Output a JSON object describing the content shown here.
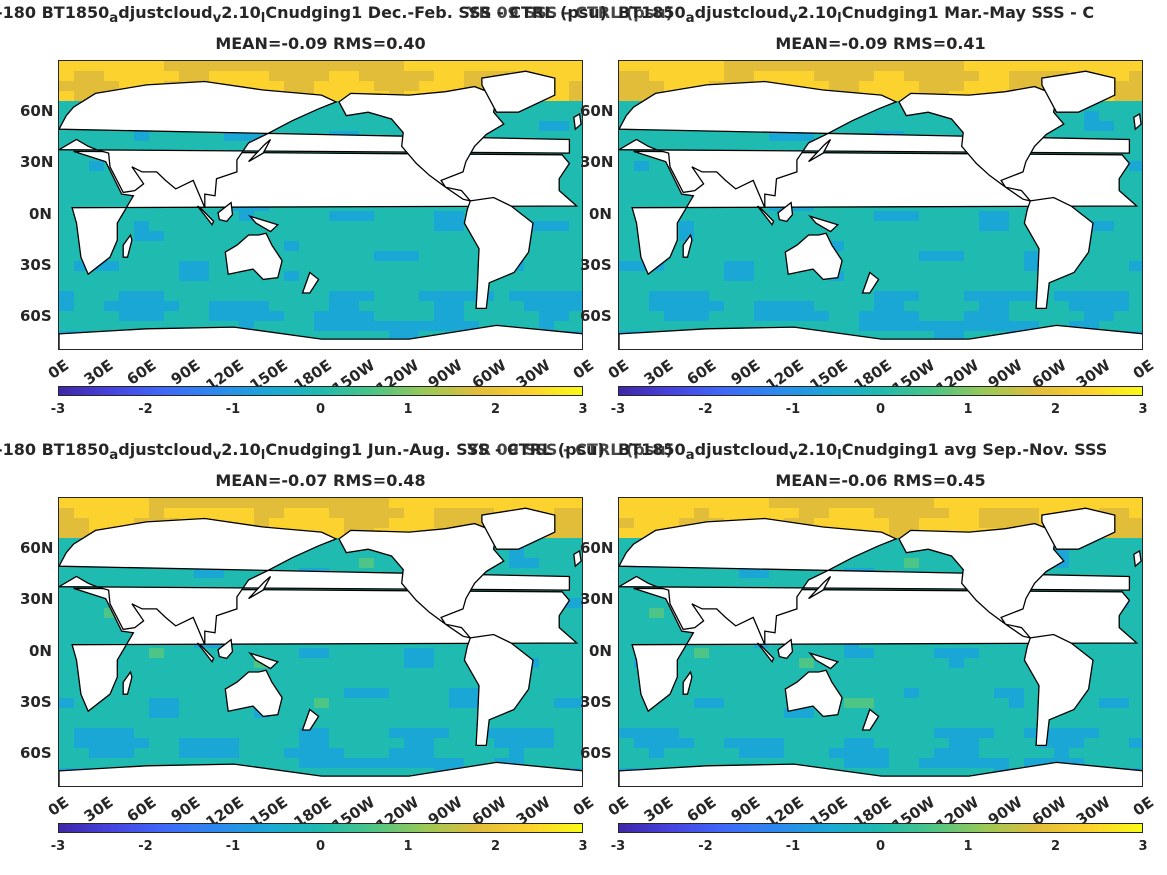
{
  "colors": {
    "colormap": [
      "#3e26a8",
      "#4743e0",
      "#3f68fa",
      "#2d88f0",
      "#1ba7d6",
      "#1fbab0",
      "#4cc586",
      "#9bc957",
      "#e1bd3a",
      "#fcd22e",
      "#f9fb15"
    ],
    "land": "#ffffff",
    "coast": "#000000",
    "ocean": "#2aa8c4"
  },
  "chart_data": [
    {
      "type": "heatmap",
      "title_prefix": "-180 BT1850",
      "title_sub_a": "a",
      "title_mid1": "djustcloud",
      "title_sub_v": "v",
      "title_mid2": "2.10",
      "title_sub_l": "l",
      "title_suffix": "Cnudging1  Dec.-Feb. SSS - CTRL (psu)",
      "overlap_text": "YR 09 SSS - CTRL (psu)",
      "stats": "MEAN=-0.09   RMS=0.40",
      "mean": -0.09,
      "rms": 0.4,
      "x_ticks": [
        "0E",
        "30E",
        "60E",
        "90E",
        "120E",
        "150E",
        "180E",
        "150W",
        "120W",
        "90W",
        "60W",
        "30W",
        "0E"
      ],
      "y_ticks": [
        "60N",
        "30N",
        "0N",
        "30S",
        "60S"
      ],
      "colorbar_ticks": [
        "-3",
        "-2",
        "-1",
        "0",
        "1",
        "2",
        "3"
      ],
      "clim": [
        -3,
        3
      ],
      "xlim": [
        0,
        360
      ],
      "ylim": [
        -80,
        90
      ]
    },
    {
      "type": "heatmap",
      "title_prefix": "BT1850",
      "title_sub_a": "a",
      "title_mid1": "djustcloud",
      "title_sub_v": "v",
      "title_mid2": "2.10",
      "title_sub_l": "l",
      "title_suffix": "Cnudging1 Mar.-May SSS - C",
      "overlap_text": "",
      "stats": "MEAN=-0.09   RMS=0.41",
      "mean": -0.09,
      "rms": 0.41,
      "x_ticks": [
        "0E",
        "30E",
        "60E",
        "90E",
        "120E",
        "150E",
        "180E",
        "150W",
        "120W",
        "90W",
        "60W",
        "30W",
        "0E"
      ],
      "y_ticks": [
        "60N",
        "30N",
        "0N",
        "30S",
        "60S"
      ],
      "colorbar_ticks": [
        "-3",
        "-2",
        "-1",
        "0",
        "1",
        "2",
        "3"
      ],
      "clim": [
        -3,
        3
      ],
      "xlim": [
        0,
        360
      ],
      "ylim": [
        -80,
        90
      ]
    },
    {
      "type": "heatmap",
      "title_prefix": "-180 BT1850",
      "title_sub_a": "a",
      "title_mid1": "djustcloud",
      "title_sub_v": "v",
      "title_mid2": "2.10",
      "title_sub_l": "l",
      "title_suffix": "Cnudging1 Jun.-Aug. SSS - CTRL (psu)",
      "overlap_text": "YR 09 SSS - CTRL (psu)",
      "stats": "MEAN=-0.07   RMS=0.48",
      "mean": -0.07,
      "rms": 0.48,
      "x_ticks": [
        "0E",
        "30E",
        "60E",
        "90E",
        "120E",
        "150E",
        "180E",
        "150W",
        "120W",
        "90W",
        "60W",
        "30W",
        "0E"
      ],
      "y_ticks": [
        "60N",
        "30N",
        "0N",
        "30S",
        "60S"
      ],
      "colorbar_ticks": [
        "-3",
        "-2",
        "-1",
        "0",
        "1",
        "2",
        "3"
      ],
      "clim": [
        -3,
        3
      ],
      "xlim": [
        0,
        360
      ],
      "ylim": [
        -80,
        90
      ]
    },
    {
      "type": "heatmap",
      "title_prefix": "BT1850",
      "title_sub_a": "a",
      "title_mid1": "djustcloud",
      "title_sub_v": "v",
      "title_mid2": "2.10",
      "title_sub_l": "l",
      "title_suffix": "Cnudging1 avg Sep.-Nov. SSS",
      "overlap_text": "",
      "stats": "MEAN=-0.06   RMS=0.45",
      "mean": -0.06,
      "rms": 0.45,
      "x_ticks": [
        "0E",
        "30E",
        "60E",
        "90E",
        "120E",
        "150E",
        "180E",
        "150W",
        "120W",
        "90W",
        "60W",
        "30W",
        "0E"
      ],
      "y_ticks": [
        "60N",
        "30N",
        "0N",
        "30S",
        "60S"
      ],
      "colorbar_ticks": [
        "-3",
        "-2",
        "-1",
        "0",
        "1",
        "2",
        "3"
      ],
      "clim": [
        -3,
        3
      ],
      "xlim": [
        0,
        360
      ],
      "ylim": [
        -80,
        90
      ]
    }
  ]
}
